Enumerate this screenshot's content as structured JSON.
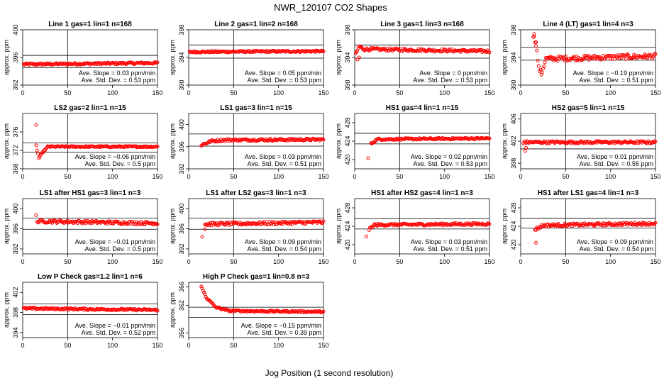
{
  "figure": {
    "title": "NWR_120107  CO2 Shapes",
    "xlabel": "Jog Position (1 second resolution)"
  },
  "colors": {
    "points": "#ff0000",
    "axes": "#000000",
    "background": "#ffffff"
  },
  "chart_data": [
    {
      "type": "scatter",
      "title": "Line 1 gas=1 lin=1 n=168",
      "ylabel": "approx. ppm",
      "xlim": [
        0,
        150
      ],
      "ylim": [
        392,
        400
      ],
      "xticks": [
        0,
        50,
        100,
        150
      ],
      "yticks": [
        392,
        396,
        400
      ],
      "hlines": [
        396.3,
        394.5
      ],
      "vline": 50,
      "x_start": 1,
      "x_end": 150,
      "profile": [
        [
          1,
          395.0
        ],
        [
          150,
          395.2
        ]
      ],
      "noise": 0.15,
      "outliers": [],
      "annotation": [
        "Ave. Slope = 0.03  ppm/min",
        "Ave. Std. Dev. = 0.53  ppm"
      ]
    },
    {
      "type": "scatter",
      "title": "Line 2 gas=1 lin=2 n=168",
      "ylabel": "approx. ppm",
      "xlim": [
        0,
        150
      ],
      "ylim": [
        390,
        398
      ],
      "xticks": [
        0,
        50,
        100,
        150
      ],
      "yticks": [
        390,
        394,
        398
      ],
      "hlines": [
        395.8,
        393.9
      ],
      "vline": 50,
      "x_start": 1,
      "x_end": 150,
      "profile": [
        [
          1,
          394.8
        ],
        [
          150,
          394.9
        ]
      ],
      "noise": 0.12,
      "outliers": [],
      "annotation": [
        "Ave. Slope = 0.05  ppm/min",
        "Ave. Std. Dev. = 0.53  ppm"
      ]
    },
    {
      "type": "scatter",
      "title": "Line 3 gas=1 lin=3 n=168",
      "ylabel": "approx. ppm",
      "xlim": [
        0,
        150
      ],
      "ylim": [
        390,
        398
      ],
      "xticks": [
        0,
        50,
        100,
        150
      ],
      "yticks": [
        390,
        394,
        398
      ],
      "hlines": [
        395.8,
        393.9
      ],
      "vline": 50,
      "x_start": 1,
      "x_end": 150,
      "profile": [
        [
          1,
          394.4
        ],
        [
          5,
          395.6
        ],
        [
          10,
          395.2
        ],
        [
          150,
          394.9
        ]
      ],
      "noise": 0.2,
      "outliers": [
        [
          3,
          393.7
        ],
        [
          5,
          394.0
        ]
      ],
      "annotation": [
        "Ave. Slope = 0  ppm/min",
        "Ave. Std. Dev. = 0.53  ppm"
      ]
    },
    {
      "type": "scatter",
      "title": "Line 4 (LT) gas=1 lin=4 n=3",
      "ylabel": "approx. ppm",
      "xlim": [
        0,
        150
      ],
      "ylim": [
        390,
        398
      ],
      "xticks": [
        0,
        50,
        100,
        150
      ],
      "yticks": [
        390,
        394,
        398
      ],
      "hlines": [
        395.5,
        393.6
      ],
      "vline": 50,
      "x_start": 14,
      "x_end": 150,
      "profile": [
        [
          14,
          397.2
        ],
        [
          17,
          396.0
        ],
        [
          20,
          392.5
        ],
        [
          23,
          391.6
        ],
        [
          28,
          393.8
        ],
        [
          150,
          394.2
        ]
      ],
      "noise": 0.35,
      "outliers": [
        [
          15,
          397.4
        ],
        [
          17,
          396.2
        ]
      ],
      "annotation": [
        "Ave. Slope = −0.19  ppm/min",
        "Ave. Std. Dev. = 0.51  ppm"
      ]
    },
    {
      "type": "scatter",
      "title": "LS2 gas=2 lin=1 n=15",
      "ylabel": "approx. ppm",
      "xlim": [
        0,
        150
      ],
      "ylim": [
        368,
        380
      ],
      "xticks": [
        0,
        50,
        100,
        150
      ],
      "yticks": [
        368,
        372,
        376
      ],
      "hlines": [
        373.6,
        371.6
      ],
      "vline": 50,
      "x_start": 15,
      "x_end": 150,
      "profile": [
        [
          15,
          373.0
        ],
        [
          18,
          370.3
        ],
        [
          22,
          371.5
        ],
        [
          28,
          372.8
        ],
        [
          150,
          372.8
        ]
      ],
      "noise": 0.15,
      "outliers": [
        [
          15,
          377.5
        ]
      ],
      "annotation": [
        "Ave. Slope = −0.06  ppm/min",
        "Ave. Std. Dev. = 0.5  ppm"
      ]
    },
    {
      "type": "scatter",
      "title": "LS1 gas=3 lin=1 n=15",
      "ylabel": "approx. ppm",
      "xlim": [
        0,
        150
      ],
      "ylim": [
        392,
        402
      ],
      "xticks": [
        0,
        50,
        100,
        150
      ],
      "yticks": [
        392,
        396,
        400
      ],
      "hlines": [
        398.3,
        396.1
      ],
      "vline": 50,
      "x_start": 14,
      "x_end": 150,
      "profile": [
        [
          14,
          396.3
        ],
        [
          25,
          397.0
        ],
        [
          40,
          397.2
        ],
        [
          150,
          397.3
        ]
      ],
      "noise": 0.2,
      "outliers": [],
      "annotation": [
        "Ave. Slope = 0.03  ppm/min",
        "Ave. Std. Dev. = 0.51  ppm"
      ]
    },
    {
      "type": "scatter",
      "title": "HS1 gas=4 lin=1 n=15",
      "ylabel": "approx. ppm",
      "xlim": [
        0,
        150
      ],
      "ylim": [
        418,
        430
      ],
      "xticks": [
        0,
        50,
        100,
        150
      ],
      "yticks": [
        420,
        424,
        428
      ],
      "hlines": [
        425.7,
        423.4
      ],
      "vline": 50,
      "x_start": 18,
      "x_end": 150,
      "profile": [
        [
          18,
          423.4
        ],
        [
          25,
          424.4
        ],
        [
          150,
          424.6
        ]
      ],
      "noise": 0.2,
      "outliers": [
        [
          15,
          420.3
        ]
      ],
      "annotation": [
        "Ave. Slope = 0.02  ppm/min",
        "Ave. Std. Dev. = 0.53  ppm"
      ]
    },
    {
      "type": "scatter",
      "title": "HS2 gas=5 lin=1 n=15",
      "ylabel": "approx. ppm",
      "xlim": [
        0,
        150
      ],
      "ylim": [
        397,
        407
      ],
      "xticks": [
        0,
        50,
        100,
        150
      ],
      "yticks": [
        398,
        402,
        406
      ],
      "hlines": [
        403.1,
        400.6
      ],
      "vline": 50,
      "x_start": 3,
      "x_end": 150,
      "profile": [
        [
          3,
          401.8
        ],
        [
          150,
          401.8
        ]
      ],
      "noise": 0.22,
      "outliers": [
        [
          5,
          400.2
        ],
        [
          6,
          400.8
        ]
      ],
      "annotation": [
        "Ave. Slope = 0.01  ppm/min",
        "Ave. Std. Dev. = 0.55  ppm"
      ]
    },
    {
      "type": "scatter",
      "title": "LS1 after HS1 gas=3 lin=1 n=3",
      "ylabel": "approx. ppm",
      "xlim": [
        0,
        150
      ],
      "ylim": [
        391,
        402
      ],
      "xticks": [
        0,
        50,
        100,
        150
      ],
      "yticks": [
        392,
        396,
        400
      ],
      "hlines": [
        398.1,
        395.9
      ],
      "vline": 50,
      "x_start": 16,
      "x_end": 150,
      "profile": [
        [
          16,
          397.5
        ],
        [
          150,
          397.1
        ]
      ],
      "noise": 0.3,
      "outliers": [
        [
          15,
          398.7
        ]
      ],
      "annotation": [
        "Ave. Slope = −0.01  ppm/min",
        "Ave. Std. Dev. = 0.5  ppm"
      ]
    },
    {
      "type": "scatter",
      "title": "LS1 after LS2 gas=3 lin=1 n=3",
      "ylabel": "approx. ppm",
      "xlim": [
        0,
        150
      ],
      "ylim": [
        391,
        402
      ],
      "xticks": [
        0,
        50,
        100,
        150
      ],
      "yticks": [
        392,
        396,
        400
      ],
      "hlines": [
        398.1,
        395.9
      ],
      "vline": 50,
      "x_start": 18,
      "x_end": 150,
      "profile": [
        [
          18,
          396.9
        ],
        [
          150,
          397.3
        ]
      ],
      "noise": 0.3,
      "outliers": [
        [
          15,
          394.4
        ],
        [
          18,
          395.9
        ]
      ],
      "annotation": [
        "Ave. Slope = 0.09  ppm/min",
        "Ave. Std. Dev. = 0.54  ppm"
      ]
    },
    {
      "type": "scatter",
      "title": "HS1 after HS2 gas=4 lin=1 n=3",
      "ylabel": "approx. ppm",
      "xlim": [
        0,
        150
      ],
      "ylim": [
        418,
        430
      ],
      "xticks": [
        0,
        50,
        100,
        150
      ],
      "yticks": [
        420,
        424,
        428
      ],
      "hlines": [
        425.6,
        423.4
      ],
      "vline": 50,
      "x_start": 16,
      "x_end": 150,
      "profile": [
        [
          16,
          423.3
        ],
        [
          22,
          424.3
        ],
        [
          150,
          424.5
        ]
      ],
      "noise": 0.25,
      "outliers": [
        [
          13,
          421.8
        ]
      ],
      "annotation": [
        "Ave. Slope = 0.03  ppm/min",
        "Ave. Std. Dev. = 0.51  ppm"
      ]
    },
    {
      "type": "scatter",
      "title": "HS1 after LS1 gas=4 lin=1 n=3",
      "ylabel": "approx. ppm",
      "xlim": [
        0,
        150
      ],
      "ylim": [
        418,
        430
      ],
      "xticks": [
        0,
        50,
        100,
        150
      ],
      "yticks": [
        420,
        424,
        428
      ],
      "hlines": [
        425.7,
        423.6
      ],
      "vline": 50,
      "x_start": 16,
      "x_end": 150,
      "profile": [
        [
          16,
          423.3
        ],
        [
          25,
          424.2
        ],
        [
          150,
          424.6
        ]
      ],
      "noise": 0.3,
      "outliers": [
        [
          17,
          420.4
        ]
      ],
      "annotation": [
        "Ave. Slope = 0.09  ppm/min",
        "Ave. Std. Dev. = 0.54  ppm"
      ]
    },
    {
      "type": "scatter",
      "title": "Low P Check gas=1.2 lin=1 n=6",
      "ylabel": "approx. ppm",
      "xlim": [
        0,
        150
      ],
      "ylim": [
        393,
        404
      ],
      "xticks": [
        0,
        50,
        100,
        150
      ],
      "yticks": [
        394,
        398,
        402
      ],
      "hlines": [
        399.7,
        397.6
      ],
      "vline": 50,
      "x_start": 1,
      "x_end": 150,
      "profile": [
        [
          1,
          398.8
        ],
        [
          150,
          398.5
        ]
      ],
      "noise": 0.18,
      "outliers": [],
      "annotation": [
        "Ave. Slope = −0.01  ppm/min",
        "Ave. Std. Dev. = 0.52  ppm"
      ]
    },
    {
      "type": "scatter",
      "title": "High P Check gas=1 lin=0.8 n=3",
      "ylabel": "approx. ppm",
      "xlim": [
        0,
        150
      ],
      "ylim": [
        355,
        367
      ],
      "xticks": [
        0,
        50,
        100,
        150
      ],
      "yticks": [
        356,
        362,
        366
      ],
      "hlines": [
        361.6,
        359.4
      ],
      "vline": 50,
      "x_start": 14,
      "x_end": 150,
      "profile": [
        [
          14,
          366.0
        ],
        [
          20,
          363.6
        ],
        [
          30,
          361.6
        ],
        [
          45,
          360.8
        ],
        [
          150,
          360.6
        ]
      ],
      "noise": 0.18,
      "outliers": [],
      "annotation": [
        "Ave. Slope = −0.15  ppm/min",
        "Ave. Std. Dev. = 0.39  ppm"
      ]
    }
  ]
}
